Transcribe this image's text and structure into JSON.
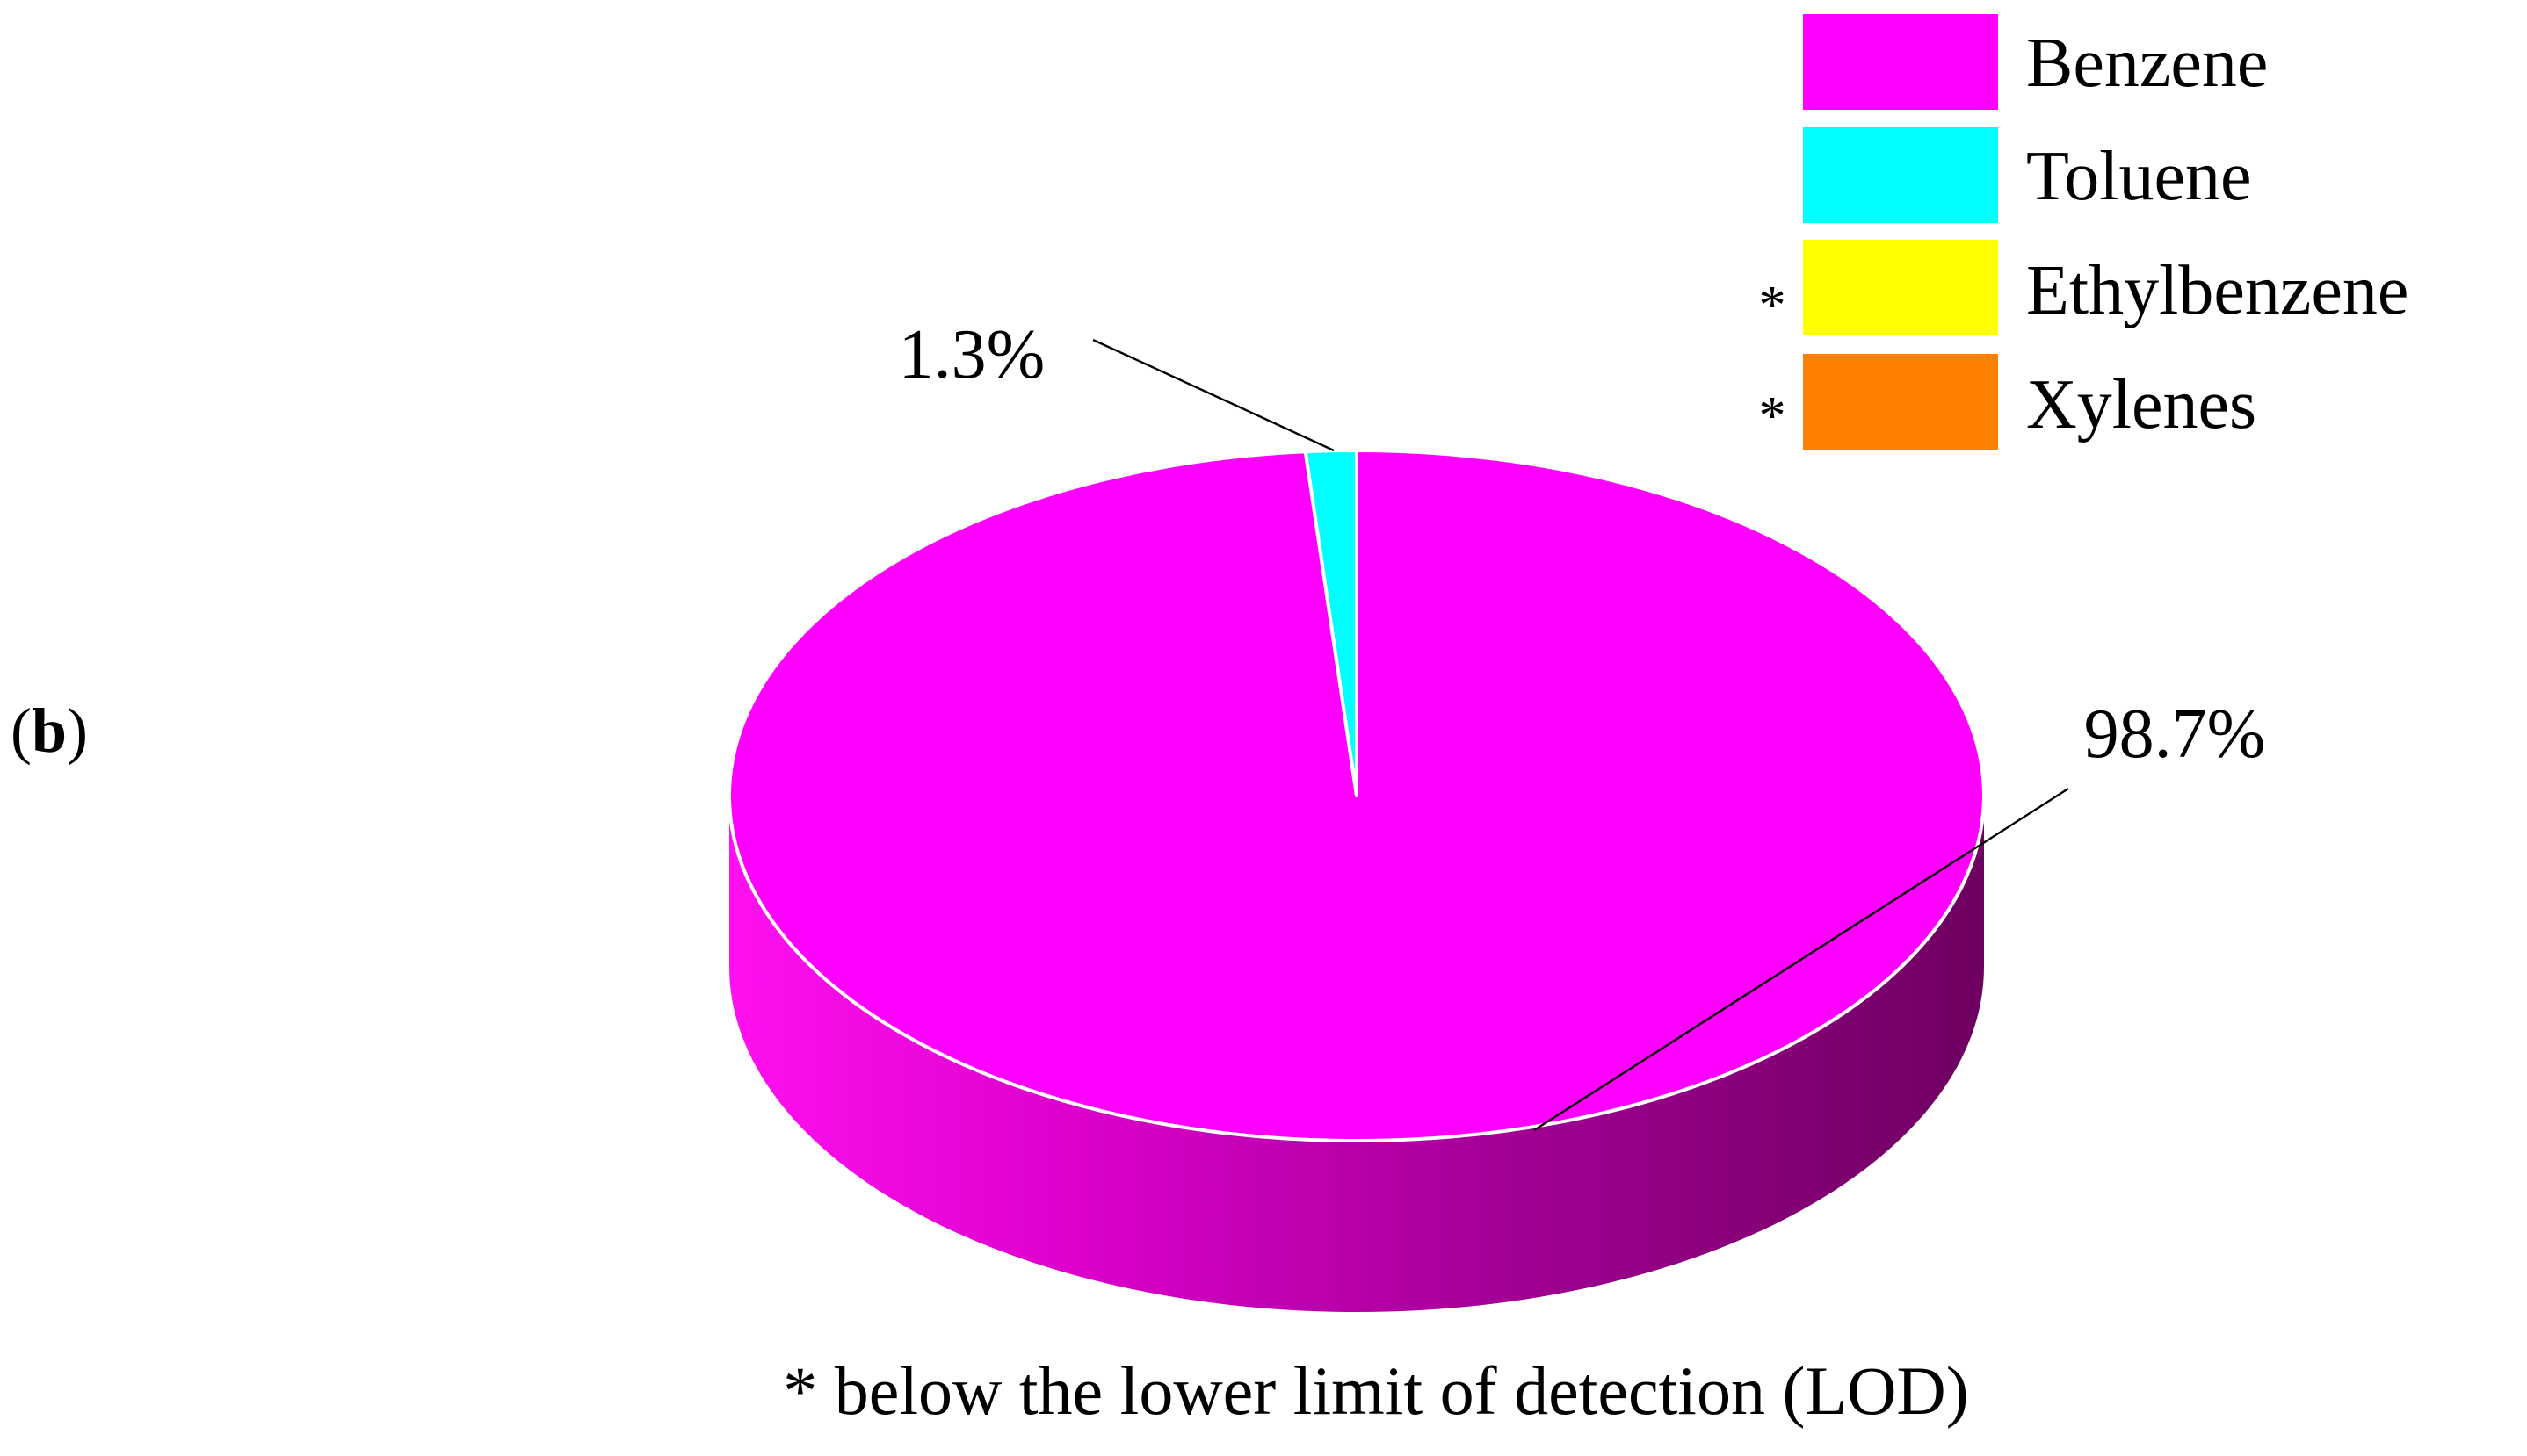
{
  "panel_label": {
    "open": "(",
    "letter": "b",
    "close": ")"
  },
  "footnote": "* below the lower limit of detection (LOD)",
  "chart_data": {
    "type": "pie",
    "style": "3d",
    "categories": [
      "Benzene",
      "Toluene",
      "Ethylbenzene",
      "Xylenes"
    ],
    "values": [
      98.7,
      1.3,
      0,
      0
    ],
    "colors": [
      "#FF00FF",
      "#00FFFF",
      "#FFFF00",
      "#FF8000"
    ],
    "data_labels": [
      {
        "category": "Benzene",
        "text": "98.7%"
      },
      {
        "category": "Toluene",
        "text": "1.3%"
      }
    ],
    "legend": {
      "position": "top-right",
      "entries": [
        {
          "label": "Benzene",
          "color": "#FF00FF",
          "marker": ""
        },
        {
          "label": "Toluene",
          "color": "#00FFFF",
          "marker": ""
        },
        {
          "label": "Ethylbenzene",
          "color": "#FFFF00",
          "marker": "*"
        },
        {
          "label": "Xylenes",
          "color": "#FF8000",
          "marker": "*"
        }
      ]
    }
  }
}
